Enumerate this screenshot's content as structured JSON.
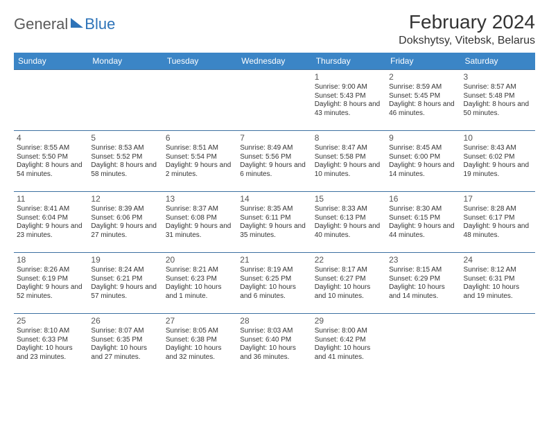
{
  "logo": {
    "part1": "General",
    "part2": "Blue"
  },
  "title": "February 2024",
  "location": "Dokshytsy, Vitebsk, Belarus",
  "colors": {
    "header_bg": "#3b85c6",
    "header_text": "#ffffff",
    "row_border": "#3b6fa0",
    "logo_gray": "#5a5a5a",
    "logo_blue": "#2d73b8",
    "text": "#333333",
    "page_bg": "#ffffff"
  },
  "weekdays": [
    "Sunday",
    "Monday",
    "Tuesday",
    "Wednesday",
    "Thursday",
    "Friday",
    "Saturday"
  ],
  "start_weekday_index": 4,
  "days": [
    {
      "n": 1,
      "sunrise": "9:00 AM",
      "sunset": "5:43 PM",
      "daylight": "8 hours and 43 minutes."
    },
    {
      "n": 2,
      "sunrise": "8:59 AM",
      "sunset": "5:45 PM",
      "daylight": "8 hours and 46 minutes."
    },
    {
      "n": 3,
      "sunrise": "8:57 AM",
      "sunset": "5:48 PM",
      "daylight": "8 hours and 50 minutes."
    },
    {
      "n": 4,
      "sunrise": "8:55 AM",
      "sunset": "5:50 PM",
      "daylight": "8 hours and 54 minutes."
    },
    {
      "n": 5,
      "sunrise": "8:53 AM",
      "sunset": "5:52 PM",
      "daylight": "8 hours and 58 minutes."
    },
    {
      "n": 6,
      "sunrise": "8:51 AM",
      "sunset": "5:54 PM",
      "daylight": "9 hours and 2 minutes."
    },
    {
      "n": 7,
      "sunrise": "8:49 AM",
      "sunset": "5:56 PM",
      "daylight": "9 hours and 6 minutes."
    },
    {
      "n": 8,
      "sunrise": "8:47 AM",
      "sunset": "5:58 PM",
      "daylight": "9 hours and 10 minutes."
    },
    {
      "n": 9,
      "sunrise": "8:45 AM",
      "sunset": "6:00 PM",
      "daylight": "9 hours and 14 minutes."
    },
    {
      "n": 10,
      "sunrise": "8:43 AM",
      "sunset": "6:02 PM",
      "daylight": "9 hours and 19 minutes."
    },
    {
      "n": 11,
      "sunrise": "8:41 AM",
      "sunset": "6:04 PM",
      "daylight": "9 hours and 23 minutes."
    },
    {
      "n": 12,
      "sunrise": "8:39 AM",
      "sunset": "6:06 PM",
      "daylight": "9 hours and 27 minutes."
    },
    {
      "n": 13,
      "sunrise": "8:37 AM",
      "sunset": "6:08 PM",
      "daylight": "9 hours and 31 minutes."
    },
    {
      "n": 14,
      "sunrise": "8:35 AM",
      "sunset": "6:11 PM",
      "daylight": "9 hours and 35 minutes."
    },
    {
      "n": 15,
      "sunrise": "8:33 AM",
      "sunset": "6:13 PM",
      "daylight": "9 hours and 40 minutes."
    },
    {
      "n": 16,
      "sunrise": "8:30 AM",
      "sunset": "6:15 PM",
      "daylight": "9 hours and 44 minutes."
    },
    {
      "n": 17,
      "sunrise": "8:28 AM",
      "sunset": "6:17 PM",
      "daylight": "9 hours and 48 minutes."
    },
    {
      "n": 18,
      "sunrise": "8:26 AM",
      "sunset": "6:19 PM",
      "daylight": "9 hours and 52 minutes."
    },
    {
      "n": 19,
      "sunrise": "8:24 AM",
      "sunset": "6:21 PM",
      "daylight": "9 hours and 57 minutes."
    },
    {
      "n": 20,
      "sunrise": "8:21 AM",
      "sunset": "6:23 PM",
      "daylight": "10 hours and 1 minute."
    },
    {
      "n": 21,
      "sunrise": "8:19 AM",
      "sunset": "6:25 PM",
      "daylight": "10 hours and 6 minutes."
    },
    {
      "n": 22,
      "sunrise": "8:17 AM",
      "sunset": "6:27 PM",
      "daylight": "10 hours and 10 minutes."
    },
    {
      "n": 23,
      "sunrise": "8:15 AM",
      "sunset": "6:29 PM",
      "daylight": "10 hours and 14 minutes."
    },
    {
      "n": 24,
      "sunrise": "8:12 AM",
      "sunset": "6:31 PM",
      "daylight": "10 hours and 19 minutes."
    },
    {
      "n": 25,
      "sunrise": "8:10 AM",
      "sunset": "6:33 PM",
      "daylight": "10 hours and 23 minutes."
    },
    {
      "n": 26,
      "sunrise": "8:07 AM",
      "sunset": "6:35 PM",
      "daylight": "10 hours and 27 minutes."
    },
    {
      "n": 27,
      "sunrise": "8:05 AM",
      "sunset": "6:38 PM",
      "daylight": "10 hours and 32 minutes."
    },
    {
      "n": 28,
      "sunrise": "8:03 AM",
      "sunset": "6:40 PM",
      "daylight": "10 hours and 36 minutes."
    },
    {
      "n": 29,
      "sunrise": "8:00 AM",
      "sunset": "6:42 PM",
      "daylight": "10 hours and 41 minutes."
    }
  ],
  "labels": {
    "sunrise": "Sunrise:",
    "sunset": "Sunset:",
    "daylight": "Daylight:"
  }
}
